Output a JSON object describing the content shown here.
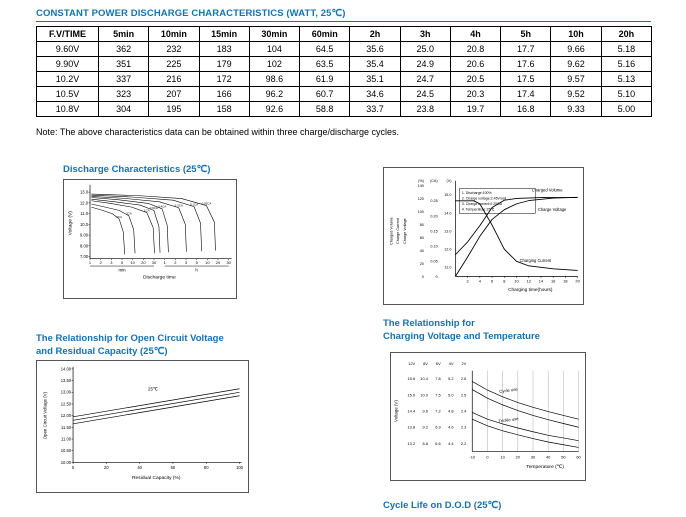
{
  "colors": {
    "accent": "#1273B8",
    "text": "#000000",
    "border": "#000000"
  },
  "page": {
    "title": "CONSTANT POWER DISCHARGE CHARACTERISTICS (WATT, 25℃)",
    "note": "Note: The above characteristics data can be obtained within three charge/discharge cycles."
  },
  "table": {
    "headers": [
      "F.V/TIME",
      "5min",
      "10min",
      "15min",
      "30min",
      "60min",
      "2h",
      "3h",
      "4h",
      "5h",
      "10h",
      "20h"
    ],
    "rows": [
      [
        "9.60V",
        "362",
        "232",
        "183",
        "104",
        "64.5",
        "35.6",
        "25.0",
        "20.8",
        "17.7",
        "9.66",
        "5.18"
      ],
      [
        "9.90V",
        "351",
        "225",
        "179",
        "102",
        "63.5",
        "35.4",
        "24.9",
        "20.6",
        "17.6",
        "9.62",
        "5.16"
      ],
      [
        "10.2V",
        "337",
        "216",
        "172",
        "98.6",
        "61.9",
        "35.1",
        "24.7",
        "20.5",
        "17.5",
        "9.57",
        "5.13"
      ],
      [
        "10.5V",
        "323",
        "207",
        "166",
        "96.2",
        "60.7",
        "34.6",
        "24.5",
        "20.3",
        "17.4",
        "9.52",
        "5.10"
      ],
      [
        "10.8V",
        "304",
        "195",
        "158",
        "92.6",
        "58.8",
        "33.7",
        "23.8",
        "19.7",
        "16.8",
        "9.33",
        "5.00"
      ]
    ]
  },
  "sections": {
    "discharge_title": "Discharge Characteristics (25℃)",
    "ocv_title_line1": "The Relationship for Open Circuit Voltage",
    "ocv_title_line2": "and Residual Capacity (25℃)",
    "charging_title_line1": "The Relationship for",
    "charging_title_line2": "Charging Voltage and Temperature",
    "cycle_life_title": "Cycle Life on D.O.D (25℃)"
  },
  "chart_data": [
    {
      "id": "discharge",
      "type": "line",
      "title": "Discharge Characteristics (25℃)",
      "ylabel": "Voltage (V)",
      "xlabel": "Discharge time",
      "yticks": [
        "13.0",
        "12.0",
        "11.0",
        "10.0",
        "9.00",
        "8.00",
        "7.00"
      ],
      "ylim": [
        6.8,
        13.4
      ],
      "x_groups": [
        {
          "label": "min",
          "ticks": [
            "1",
            "2",
            "3",
            "5",
            "10",
            "20",
            "30"
          ]
        },
        {
          "label": "h",
          "ticks": [
            "1",
            "2",
            "3",
            "5",
            "10",
            "20",
            "30"
          ]
        }
      ],
      "series": [
        {
          "name": "3CA",
          "points": [
            [
              0.01,
              11.6
            ],
            [
              0.09,
              11.3
            ],
            [
              0.16,
              11.0
            ],
            [
              0.21,
              10.5
            ],
            [
              0.24,
              9.3
            ],
            [
              0.25,
              7.2
            ]
          ]
        },
        {
          "name": "2CA",
          "points": [
            [
              0.01,
              11.9
            ],
            [
              0.11,
              11.6
            ],
            [
              0.21,
              11.3
            ],
            [
              0.28,
              10.8
            ],
            [
              0.315,
              9.5
            ],
            [
              0.325,
              7.3
            ]
          ]
        },
        {
          "name": "1CA",
          "points": [
            [
              0.01,
              12.2
            ],
            [
              0.15,
              11.95
            ],
            [
              0.3,
              11.6
            ],
            [
              0.41,
              11.1
            ],
            [
              0.455,
              9.7
            ],
            [
              0.465,
              7.3
            ]
          ]
        },
        {
          "name": "0.6CA",
          "points": [
            [
              0.01,
              12.35
            ],
            [
              0.18,
              12.1
            ],
            [
              0.36,
              11.8
            ],
            [
              0.46,
              11.3
            ],
            [
              0.497,
              9.8
            ],
            [
              0.505,
              7.35
            ]
          ]
        },
        {
          "name": "0.4CA",
          "points": [
            [
              0.01,
              12.5
            ],
            [
              0.2,
              12.3
            ],
            [
              0.42,
              11.95
            ],
            [
              0.52,
              11.45
            ],
            [
              0.557,
              9.9
            ],
            [
              0.565,
              7.4
            ]
          ]
        },
        {
          "name": "0.2CA",
          "points": [
            [
              0.01,
              12.6
            ],
            [
              0.25,
              12.42
            ],
            [
              0.5,
              12.1
            ],
            [
              0.64,
              11.55
            ],
            [
              0.687,
              10.0
            ],
            [
              0.695,
              7.45
            ]
          ]
        },
        {
          "name": "0.1CA",
          "points": [
            [
              0.01,
              12.72
            ],
            [
              0.3,
              12.55
            ],
            [
              0.6,
              12.25
            ],
            [
              0.75,
              11.65
            ],
            [
              0.797,
              10.1
            ],
            [
              0.805,
              7.5
            ]
          ]
        },
        {
          "name": "0.05CA",
          "points": [
            [
              0.01,
              12.82
            ],
            [
              0.35,
              12.68
            ],
            [
              0.66,
              12.4
            ],
            [
              0.84,
              11.75
            ],
            [
              0.897,
              10.2
            ],
            [
              0.905,
              7.55
            ]
          ]
        }
      ]
    },
    {
      "id": "charge",
      "type": "line",
      "xlabel": "Charging time(hours)",
      "xticks": [
        2,
        4,
        6,
        8,
        10,
        12,
        14,
        16,
        18,
        20
      ],
      "xlim": [
        0,
        20
      ],
      "axes": [
        {
          "label": "Charged Volume",
          "unit": "(%)",
          "ticks": [
            "140",
            "120",
            "100",
            "80",
            "60",
            "40",
            "20",
            "0"
          ],
          "range": [
            0,
            140
          ]
        },
        {
          "label": "Charge Current",
          "unit": "(CA)",
          "ticks": [
            "0.25",
            "0.20",
            "0.15",
            "0.10",
            "0.05",
            "0"
          ],
          "range": [
            0,
            0.3
          ]
        },
        {
          "label": "Charge Voltage",
          "unit": "(V)",
          "ticks": [
            "15.0",
            "14.0",
            "13.0",
            "12.0",
            "11.0"
          ],
          "range": [
            10.5,
            15.5
          ]
        }
      ],
      "legend": [
        "1. Discharge:100%",
        "2. Charge voltage:2.45V/cell",
        "3. Charge current:0.25CA",
        "4. Temperature:25℃"
      ],
      "series": [
        {
          "name": "Charged Volume",
          "axis": 0,
          "label_xy": [
            12.5,
            131
          ],
          "points": [
            [
              0,
              0
            ],
            [
              2,
              30
            ],
            [
              4,
              62
            ],
            [
              6,
              88
            ],
            [
              8,
              103
            ],
            [
              10,
              112
            ],
            [
              12,
              117
            ],
            [
              16,
              121
            ],
            [
              20,
              122
            ]
          ]
        },
        {
          "name": "Charge Voltage",
          "axis": 2,
          "label_xy": [
            13.5,
            14.1
          ],
          "points": [
            [
              0,
              11.7
            ],
            [
              2,
              12.4
            ],
            [
              4,
              13.3
            ],
            [
              6,
              14.3
            ],
            [
              8,
              14.7
            ],
            [
              10,
              14.8
            ],
            [
              14,
              14.85
            ],
            [
              20,
              14.85
            ]
          ]
        },
        {
          "name": "Charging Current",
          "axis": 1,
          "label_xy": [
            10.5,
            0.048
          ],
          "points": [
            [
              0,
              0.25
            ],
            [
              3,
              0.25
            ],
            [
              4,
              0.24
            ],
            [
              6,
              0.17
            ],
            [
              8,
              0.09
            ],
            [
              10,
              0.05
            ],
            [
              12,
              0.035
            ],
            [
              16,
              0.025
            ],
            [
              20,
              0.02
            ]
          ]
        }
      ]
    },
    {
      "id": "ocv",
      "type": "line",
      "ylabel": "Open Circuit Voltage (V)",
      "xlabel": "Residual Capacity (%)",
      "yticks": [
        "14.00",
        "13.50",
        "13.00",
        "12.50",
        "12.00",
        "11.50",
        "11.00",
        "10.50",
        "10.00"
      ],
      "ylim": [
        10.0,
        14.0
      ],
      "xticks": [
        "0",
        "20",
        "40",
        "60",
        "80",
        "100"
      ],
      "xlim": [
        0,
        100
      ],
      "annotation": "25℃",
      "annotation_xy": [
        48,
        13.0
      ],
      "series": [
        {
          "name": "upper",
          "points": [
            [
              0,
              11.95
            ],
            [
              100,
              13.15
            ]
          ]
        },
        {
          "name": "mid",
          "points": [
            [
              0,
              11.8
            ],
            [
              100,
              13.0
            ]
          ]
        },
        {
          "name": "lower",
          "points": [
            [
              0,
              11.65
            ],
            [
              100,
              12.85
            ]
          ]
        }
      ]
    },
    {
      "id": "charging-voltage-temperature",
      "type": "line",
      "ylabel": "Voltage (V)",
      "xlabel": "Temperature (℃)",
      "column_headers": [
        "12V",
        "8V",
        "6V",
        "4V",
        "2V"
      ],
      "tick_rows": [
        [
          "15.6",
          "10.4",
          "7.8",
          "5.2",
          "2.6"
        ],
        [
          "15.0",
          "10.0",
          "7.5",
          "5.0",
          "2.5"
        ],
        [
          "14.4",
          "9.6",
          "7.2",
          "4.8",
          "2.4"
        ],
        [
          "13.8",
          "9.2",
          "6.9",
          "4.6",
          "2.3"
        ],
        [
          "13.2",
          "8.8",
          "6.6",
          "4.4",
          "2.2"
        ]
      ],
      "tick_values": [
        15.6,
        15.0,
        14.4,
        13.8,
        13.2
      ],
      "ylim": [
        12.9,
        15.9
      ],
      "xticks": [
        "-10",
        "0",
        "10",
        "20",
        "30",
        "40",
        "50",
        "60"
      ],
      "xlim": [
        -10,
        60
      ],
      "series": [
        {
          "name": "Cycle use",
          "label_xy": [
            14,
            15.12
          ],
          "points": [
            [
              -10,
              15.5
            ],
            [
              0,
              15.18
            ],
            [
              10,
              14.93
            ],
            [
              20,
              14.72
            ],
            [
              30,
              14.54
            ],
            [
              40,
              14.38
            ],
            [
              50,
              14.24
            ],
            [
              60,
              14.1
            ]
          ]
        },
        {
          "name": "",
          "points": [
            [
              -10,
              15.2
            ],
            [
              0,
              14.88
            ],
            [
              10,
              14.63
            ],
            [
              20,
              14.42
            ],
            [
              30,
              14.24
            ],
            [
              40,
              14.08
            ],
            [
              50,
              13.94
            ],
            [
              60,
              13.8
            ]
          ]
        },
        {
          "name": "Trickle use",
          "label_xy": [
            14,
            14.02
          ],
          "points": [
            [
              -10,
              14.35
            ],
            [
              0,
              14.1
            ],
            [
              10,
              13.92
            ],
            [
              20,
              13.77
            ],
            [
              30,
              13.63
            ],
            [
              40,
              13.5
            ],
            [
              50,
              13.4
            ],
            [
              60,
              13.3
            ]
          ]
        },
        {
          "name": "",
          "points": [
            [
              -10,
              14.1
            ],
            [
              0,
              13.85
            ],
            [
              10,
              13.67
            ],
            [
              20,
              13.52
            ],
            [
              30,
              13.38
            ],
            [
              40,
              13.25
            ],
            [
              50,
              13.15
            ],
            [
              60,
              13.05
            ]
          ]
        }
      ]
    }
  ]
}
